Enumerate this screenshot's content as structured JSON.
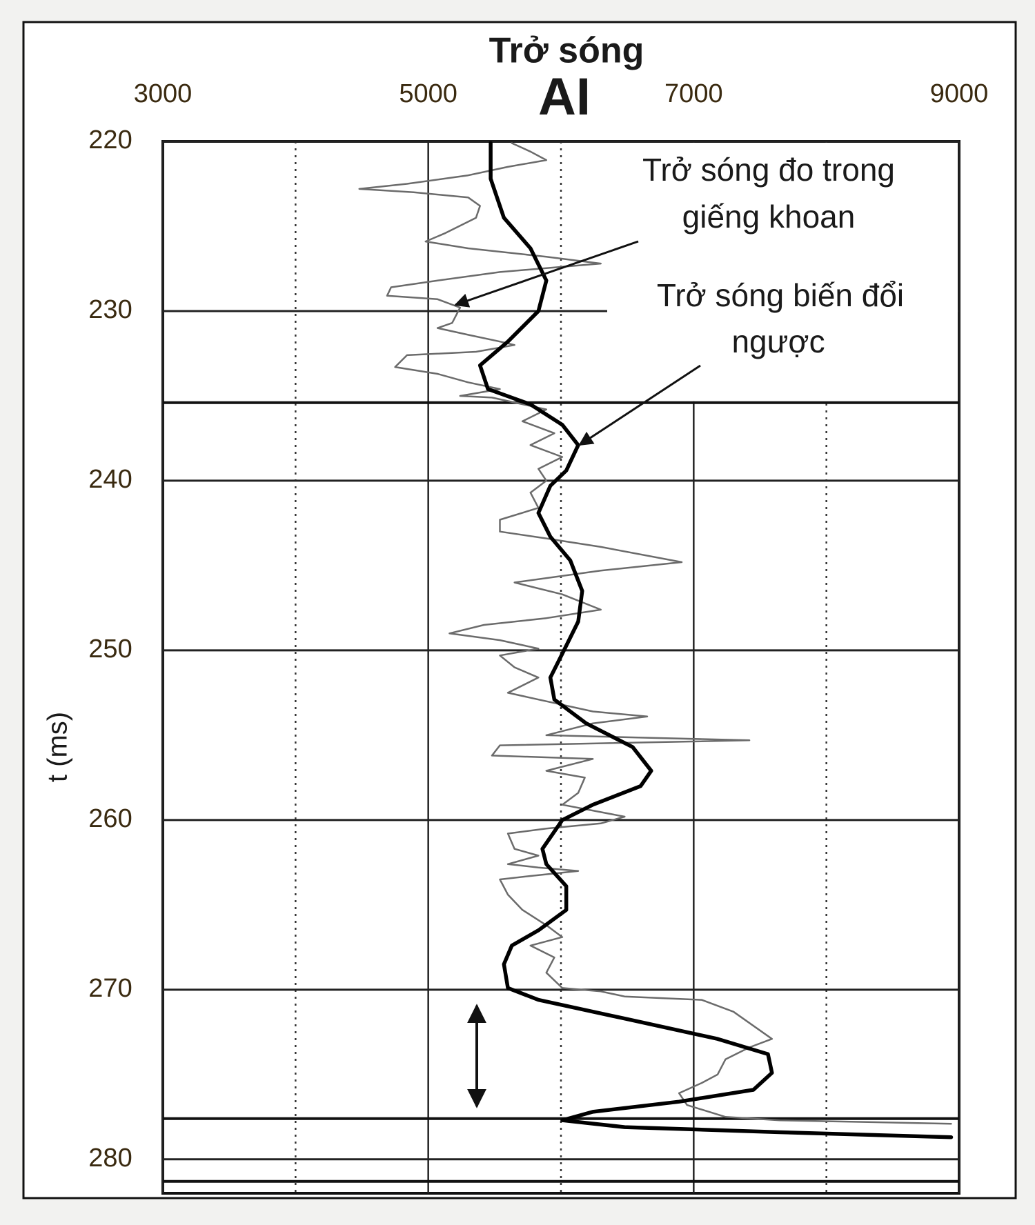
{
  "chart_data": {
    "type": "line",
    "orientation": "vertical",
    "title": "Trở sóng",
    "subtitle": "AI",
    "y_label": "t (ms)",
    "xlim": [
      3000,
      9000
    ],
    "xticks": [
      3000,
      5000,
      7000,
      9000
    ],
    "minor_xticks": [
      4000,
      6000,
      8000
    ],
    "ylim": [
      220,
      282
    ],
    "y_inverted": true,
    "yticks": [
      220,
      230,
      240,
      250,
      260,
      270,
      280
    ],
    "horizons": [
      235.4,
      277.6,
      281.3
    ],
    "grid": true,
    "series": [
      {
        "label": [
          "Trở sóng đo trong",
          "giếng khoan"
        ],
        "color": "#6b6b6b",
        "t": [
          220.1,
          220.6,
          221.1,
          221.5,
          222.0,
          222.5,
          222.8,
          223.0,
          223.3,
          223.8,
          224.5,
          225.4,
          225.9,
          226.3,
          226.8,
          227.2,
          227.7,
          228.2,
          228.6,
          229.1,
          229.3,
          229.8,
          230.7,
          231.0,
          231.4,
          231.8,
          232.0,
          232.4,
          232.6,
          233.3,
          233.7,
          234.2,
          234.6,
          235.0,
          235.1,
          235.8,
          236.5,
          237.2,
          237.9,
          238.6,
          239.3,
          240.0,
          240.7,
          241.6,
          242.3,
          243.0,
          243.4,
          243.9,
          244.8,
          245.3,
          246.0,
          246.7,
          247.6,
          248.1,
          248.5,
          249.0,
          249.4,
          249.9,
          250.3,
          251.0,
          251.6,
          252.5,
          253.0,
          253.6,
          253.9,
          254.3,
          255.0,
          255.3,
          255.6,
          256.2,
          256.4,
          257.1,
          257.5,
          258.4,
          259.1,
          259.8,
          260.2,
          260.5,
          260.8,
          261.7,
          262.1,
          262.6,
          262.8,
          263.0,
          263.3,
          263.5,
          264.4,
          265.3,
          266.2,
          266.9,
          267.4,
          268.1,
          269.0,
          269.9,
          270.1,
          270.4,
          270.6,
          271.3,
          272.9,
          273.4,
          274.1,
          275.0,
          275.5,
          276.1,
          276.8,
          277.5,
          277.7,
          277.9
        ],
        "values": [
          5630,
          5770,
          5890,
          5600,
          5300,
          4840,
          4480,
          4890,
          5300,
          5390,
          5360,
          5130,
          4980,
          5300,
          5890,
          6300,
          5540,
          5070,
          4720,
          4690,
          5070,
          5240,
          5180,
          5070,
          5300,
          5540,
          5650,
          5360,
          4840,
          4750,
          5070,
          5300,
          5540,
          5240,
          5480,
          5890,
          5710,
          5950,
          5770,
          6010,
          5830,
          5890,
          5770,
          5830,
          5540,
          5540,
          5890,
          6300,
          6910,
          6300,
          5650,
          6010,
          6300,
          5890,
          5420,
          5160,
          5540,
          5830,
          5540,
          5650,
          5830,
          5600,
          5890,
          6240,
          6650,
          6240,
          5890,
          7420,
          5540,
          5480,
          6240,
          5890,
          6180,
          6130,
          6010,
          6480,
          6300,
          5890,
          5600,
          5650,
          5830,
          5600,
          5830,
          6130,
          5770,
          5540,
          5600,
          5710,
          5890,
          6010,
          5770,
          5950,
          5890,
          6010,
          6300,
          6480,
          7060,
          7300,
          7590,
          7420,
          7240,
          7180,
          7060,
          6890,
          6950,
          7240,
          7650,
          8940
        ]
      },
      {
        "label": [
          "Trở sóng biến đổi",
          "ngược"
        ],
        "color": "#000000",
        "t": [
          220.1,
          222.2,
          224.5,
          226.3,
          228.2,
          230,
          231.8,
          233.2,
          234.6,
          235.5,
          236.7,
          237.9,
          239.4,
          240.3,
          241.9,
          243.3,
          244.7,
          246.5,
          248.3,
          250.2,
          251.6,
          252.9,
          254.3,
          255.7,
          257.1,
          258,
          259.1,
          260,
          261.7,
          262.6,
          263.9,
          265.3,
          266.5,
          267.4,
          268.5,
          269.9,
          270.6,
          271.7,
          272.9,
          273.8,
          274.9,
          275.9,
          276.6,
          277.2,
          277.7,
          278.1,
          278.4,
          278.7
        ],
        "values": [
          5470,
          5470,
          5570,
          5770,
          5890,
          5830,
          5600,
          5390,
          5450,
          5770,
          6010,
          6130,
          6040,
          5920,
          5830,
          5920,
          6070,
          6160,
          6130,
          6010,
          5920,
          5950,
          6190,
          6540,
          6680,
          6600,
          6240,
          6010,
          5860,
          5890,
          6040,
          6040,
          5830,
          5630,
          5570,
          5600,
          5830,
          6480,
          7180,
          7560,
          7590,
          7450,
          6890,
          6240,
          6010,
          6480,
          7650,
          8940
        ]
      }
    ]
  }
}
